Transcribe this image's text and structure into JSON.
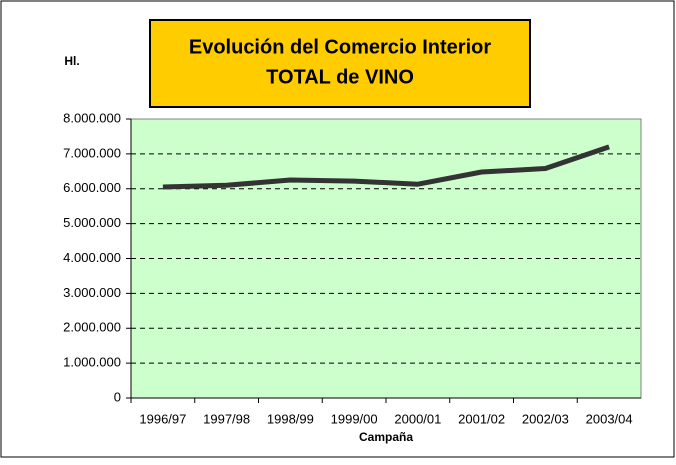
{
  "chart_data": {
    "type": "line",
    "title": [
      "Evolución del Comercio Interior",
      "TOTAL de VINO"
    ],
    "y_label": "Hl.",
    "x_label": "Campaña",
    "categories": [
      "1996/97",
      "1997/98",
      "1998/99",
      "1999/00",
      "2000/01",
      "2001/02",
      "2002/03",
      "2003/04"
    ],
    "series": [
      {
        "color": "#333333",
        "values": [
          6050000,
          6100000,
          6250000,
          6220000,
          6130000,
          6480000,
          6580000,
          7200000
        ]
      }
    ],
    "ylim": [
      0,
      8000000
    ],
    "yticks": [
      0,
      {
        "value": 1000000,
        "label": "1.000.000"
      },
      {
        "value": 2000000,
        "label": "2.000.000"
      },
      {
        "value": 3000000,
        "label": "3.000.000"
      },
      {
        "value": 4000000,
        "label": "4.000.000"
      },
      {
        "value": 5000000,
        "label": "5.000.000"
      },
      {
        "value": 6000000,
        "label": "6.000.000"
      },
      {
        "value": 7000000,
        "label": "7.000.000"
      },
      {
        "value": 8000000,
        "label": "8.000.000"
      }
    ],
    "grid": true
  }
}
